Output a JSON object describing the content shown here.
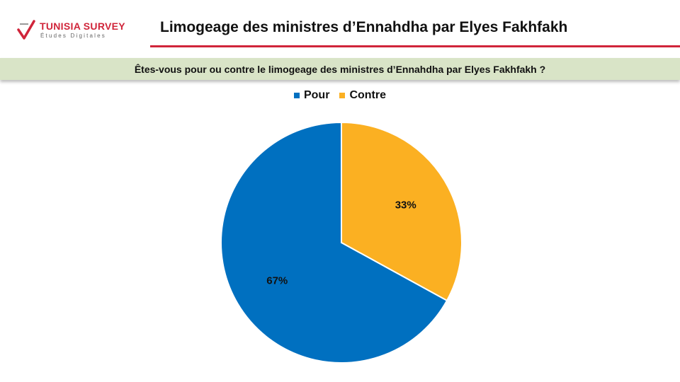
{
  "brand": {
    "name": "TUNISIA SURVEY",
    "tagline": "Études Digitales",
    "accent_color": "#d0253a"
  },
  "header": {
    "title": "Limogeage des ministres d’Ennahdha par Elyes Fakhfakh"
  },
  "chart_data": {
    "type": "pie",
    "title": "Êtes-vous pour ou contre le limogeage des ministres d’Ennahdha par Elyes Fakhfakh ?",
    "legend_position": "top",
    "slices": [
      {
        "label": "Pour",
        "value": 67,
        "display": "67%",
        "color": "#0070c0"
      },
      {
        "label": "Contre",
        "value": 33,
        "display": "33%",
        "color": "#fbb022"
      }
    ]
  }
}
